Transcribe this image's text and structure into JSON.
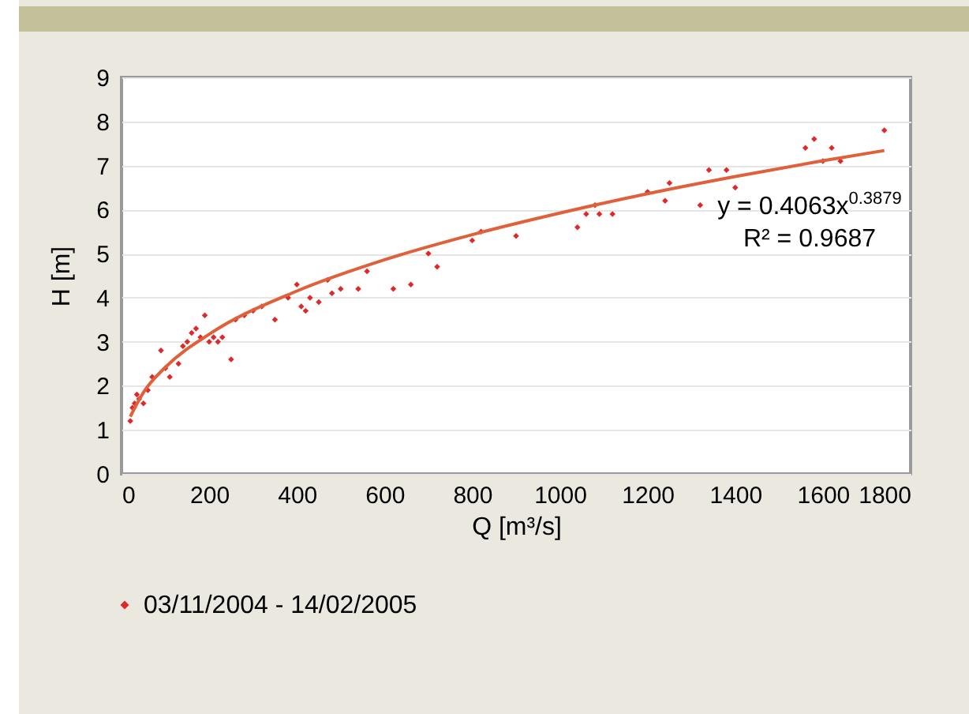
{
  "chart_data": {
    "type": "scatter",
    "xlabel": "Q [m³/s]",
    "ylabel": "H [m]",
    "xlim": [
      0,
      1800
    ],
    "xticks": [
      0,
      200,
      400,
      600,
      800,
      1000,
      1200,
      1400,
      1600,
      1800
    ],
    "ylim": [
      0,
      9
    ],
    "yticks": [
      0,
      1,
      2,
      3,
      4,
      5,
      6,
      7,
      8,
      9
    ],
    "grid": "y",
    "legend": "bottom",
    "annotations": [
      "y = 0.4063x$^{0.3879}$",
      "R² = 0.9687"
    ],
    "series": [
      {
        "name": "03/11/2004 - 14/02/2005",
        "marker": "diamond",
        "color": "#e0282a",
        "x": [
          20,
          25,
          30,
          35,
          40,
          50,
          60,
          70,
          90,
          100,
          110,
          130,
          140,
          150,
          160,
          170,
          180,
          190,
          200,
          210,
          220,
          230,
          250,
          260,
          280,
          300,
          320,
          350,
          380,
          400,
          410,
          420,
          430,
          450,
          470,
          480,
          500,
          540,
          560,
          620,
          660,
          700,
          720,
          800,
          820,
          900,
          1040,
          1060,
          1080,
          1090,
          1120,
          1200,
          1240,
          1250,
          1320,
          1340,
          1380,
          1400,
          1560,
          1580,
          1600,
          1620,
          1640,
          1740
        ],
        "values": [
          1.2,
          1.5,
          1.6,
          1.8,
          1.7,
          1.6,
          1.9,
          2.2,
          2.8,
          2.4,
          2.2,
          2.5,
          2.9,
          3.0,
          3.2,
          3.3,
          3.1,
          3.6,
          3.0,
          3.1,
          3.0,
          3.1,
          2.6,
          3.5,
          3.6,
          3.7,
          3.8,
          3.5,
          4.0,
          4.3,
          3.8,
          3.7,
          4.0,
          3.9,
          4.4,
          4.1,
          4.2,
          4.2,
          4.6,
          4.2,
          4.3,
          5.0,
          4.7,
          5.3,
          5.5,
          5.4,
          5.6,
          5.9,
          6.1,
          5.9,
          5.9,
          6.4,
          6.2,
          6.6,
          6.1,
          6.9,
          6.9,
          6.5,
          7.4,
          7.6,
          7.1,
          7.4,
          7.1,
          7.8
        ]
      },
      {
        "type": "line",
        "color": "#e0603a",
        "x": [
          20,
          50,
          100,
          200,
          400,
          600,
          800,
          1000,
          1200,
          1400,
          1600,
          1740
        ],
        "values": [
          1.3,
          1.85,
          2.42,
          3.17,
          4.15,
          4.86,
          5.43,
          5.92,
          6.36,
          6.75,
          7.11,
          7.34
        ]
      }
    ]
  }
}
